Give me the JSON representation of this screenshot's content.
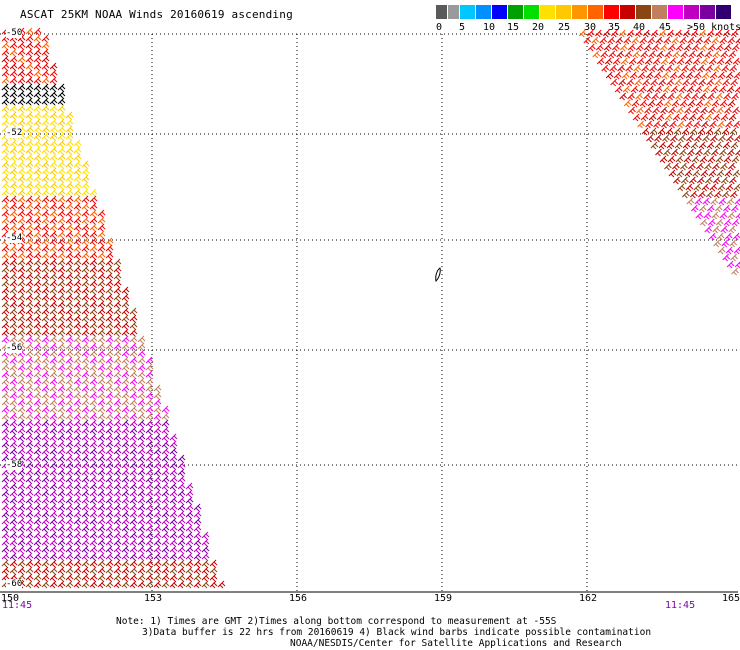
{
  "title": "ASCAT 25KM NOAA Winds 20160619 ascending",
  "legend": {
    "colors": [
      "#5a5a5a",
      "#9a9a9a",
      "#00c8ff",
      "#0090ff",
      "#0000ff",
      "#00a000",
      "#00e000",
      "#ffe000",
      "#ffc800",
      "#ff9600",
      "#ff6400",
      "#ff0000",
      "#c80000",
      "#8b4513",
      "#c08060",
      "#ff00ff",
      "#c000c0",
      "#7a00a0",
      "#300070"
    ],
    "ticks": [
      "0",
      "5",
      "10",
      "15",
      "20",
      "25",
      "30",
      "35",
      "40",
      "45",
      ">50 knots"
    ]
  },
  "map": {
    "lon_labels": [
      "150",
      "153",
      "156",
      "159",
      "162",
      "165"
    ],
    "lat_labels": [
      "-50",
      "-52",
      "-54",
      "-56",
      "-58",
      "-60"
    ],
    "start_time": "11:45",
    "end_time": "11:45"
  },
  "notes": {
    "line1": "Note: 1) Times are GMT 2)Times along bottom correspond to measurement at -55S",
    "line2": "3)Data buffer is 22 hrs from 20160619 4) Black wind barbs indicate possible contamination",
    "source": "NOAA/NESDIS/Center for Satellite Applications and Research"
  }
}
